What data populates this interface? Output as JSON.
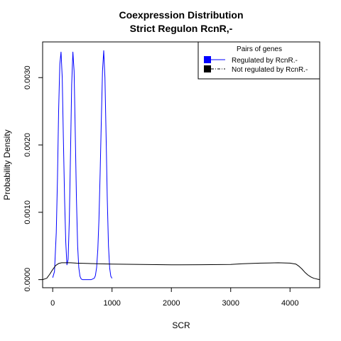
{
  "chart_data": {
    "type": "line",
    "title": "Coexpression Distribution",
    "subtitle": "Strict Regulon RcnR,-",
    "xlabel": "SCR",
    "ylabel": "Probability Density",
    "xlim": [
      -170,
      4500
    ],
    "ylim": [
      -0.00012,
      0.00353
    ],
    "x_ticks": [
      0,
      1000,
      2000,
      3000,
      4000
    ],
    "x_tick_labels": [
      "0",
      "1000",
      "2000",
      "3000",
      "4000"
    ],
    "y_ticks": [
      0.0,
      0.001,
      0.002,
      0.003
    ],
    "y_tick_labels": [
      "0.0000",
      "0.0010",
      "0.0020",
      "0.0030"
    ],
    "grid": false,
    "legend": {
      "title": "Pairs of genes",
      "placement": "top-right",
      "entries": [
        "Regulated by  RcnR.-",
        "Not regulated by  RcnR.-"
      ]
    },
    "series": [
      {
        "name": "Regulated by  RcnR.-",
        "color": "#0000ff",
        "x": [
          0,
          30,
          60,
          80,
          100,
          120,
          140,
          160,
          180,
          200,
          220,
          240,
          260,
          280,
          300,
          320,
          340,
          360,
          380,
          400,
          420,
          440,
          460,
          480,
          500,
          550,
          600,
          650,
          700,
          720,
          740,
          760,
          780,
          800,
          820,
          840,
          860,
          880,
          900,
          920,
          940,
          960,
          980,
          1000
        ],
        "y": [
          3e-05,
          0.00012,
          0.0007,
          0.0015,
          0.0025,
          0.0032,
          0.00338,
          0.003,
          0.0021,
          0.0012,
          0.00055,
          0.00022,
          0.0003,
          0.0009,
          0.0019,
          0.0029,
          0.00338,
          0.0031,
          0.0022,
          0.0012,
          0.0005,
          0.00018,
          5e-05,
          1e-05,
          0.0,
          0.0,
          0.0,
          0.0,
          2e-05,
          6e-05,
          0.00018,
          0.00045,
          0.0009,
          0.0016,
          0.0024,
          0.0031,
          0.0034,
          0.003,
          0.0021,
          0.0012,
          0.0005,
          0.00017,
          5e-05,
          2e-05
        ]
      },
      {
        "name": "Not regulated by  RcnR.-",
        "color": "#000000",
        "x": [
          -170,
          -100,
          -50,
          0,
          50,
          100,
          150,
          200,
          300,
          400,
          600,
          1000,
          1500,
          2000,
          2500,
          3000,
          3200,
          3500,
          3800,
          4000,
          4100,
          4150,
          4200,
          4250,
          4300,
          4350,
          4400,
          4450,
          4500
        ],
        "y": [
          0.0,
          2e-05,
          8e-05,
          0.00015,
          0.00021,
          0.00024,
          0.00025,
          0.00025,
          0.00025,
          0.000245,
          0.00024,
          0.00023,
          0.000225,
          0.00022,
          0.000222,
          0.000225,
          0.000235,
          0.000245,
          0.00025,
          0.000245,
          0.00023,
          0.0002,
          0.00016,
          0.00011,
          7e-05,
          4e-05,
          2e-05,
          1e-05,
          0.0
        ]
      }
    ]
  }
}
